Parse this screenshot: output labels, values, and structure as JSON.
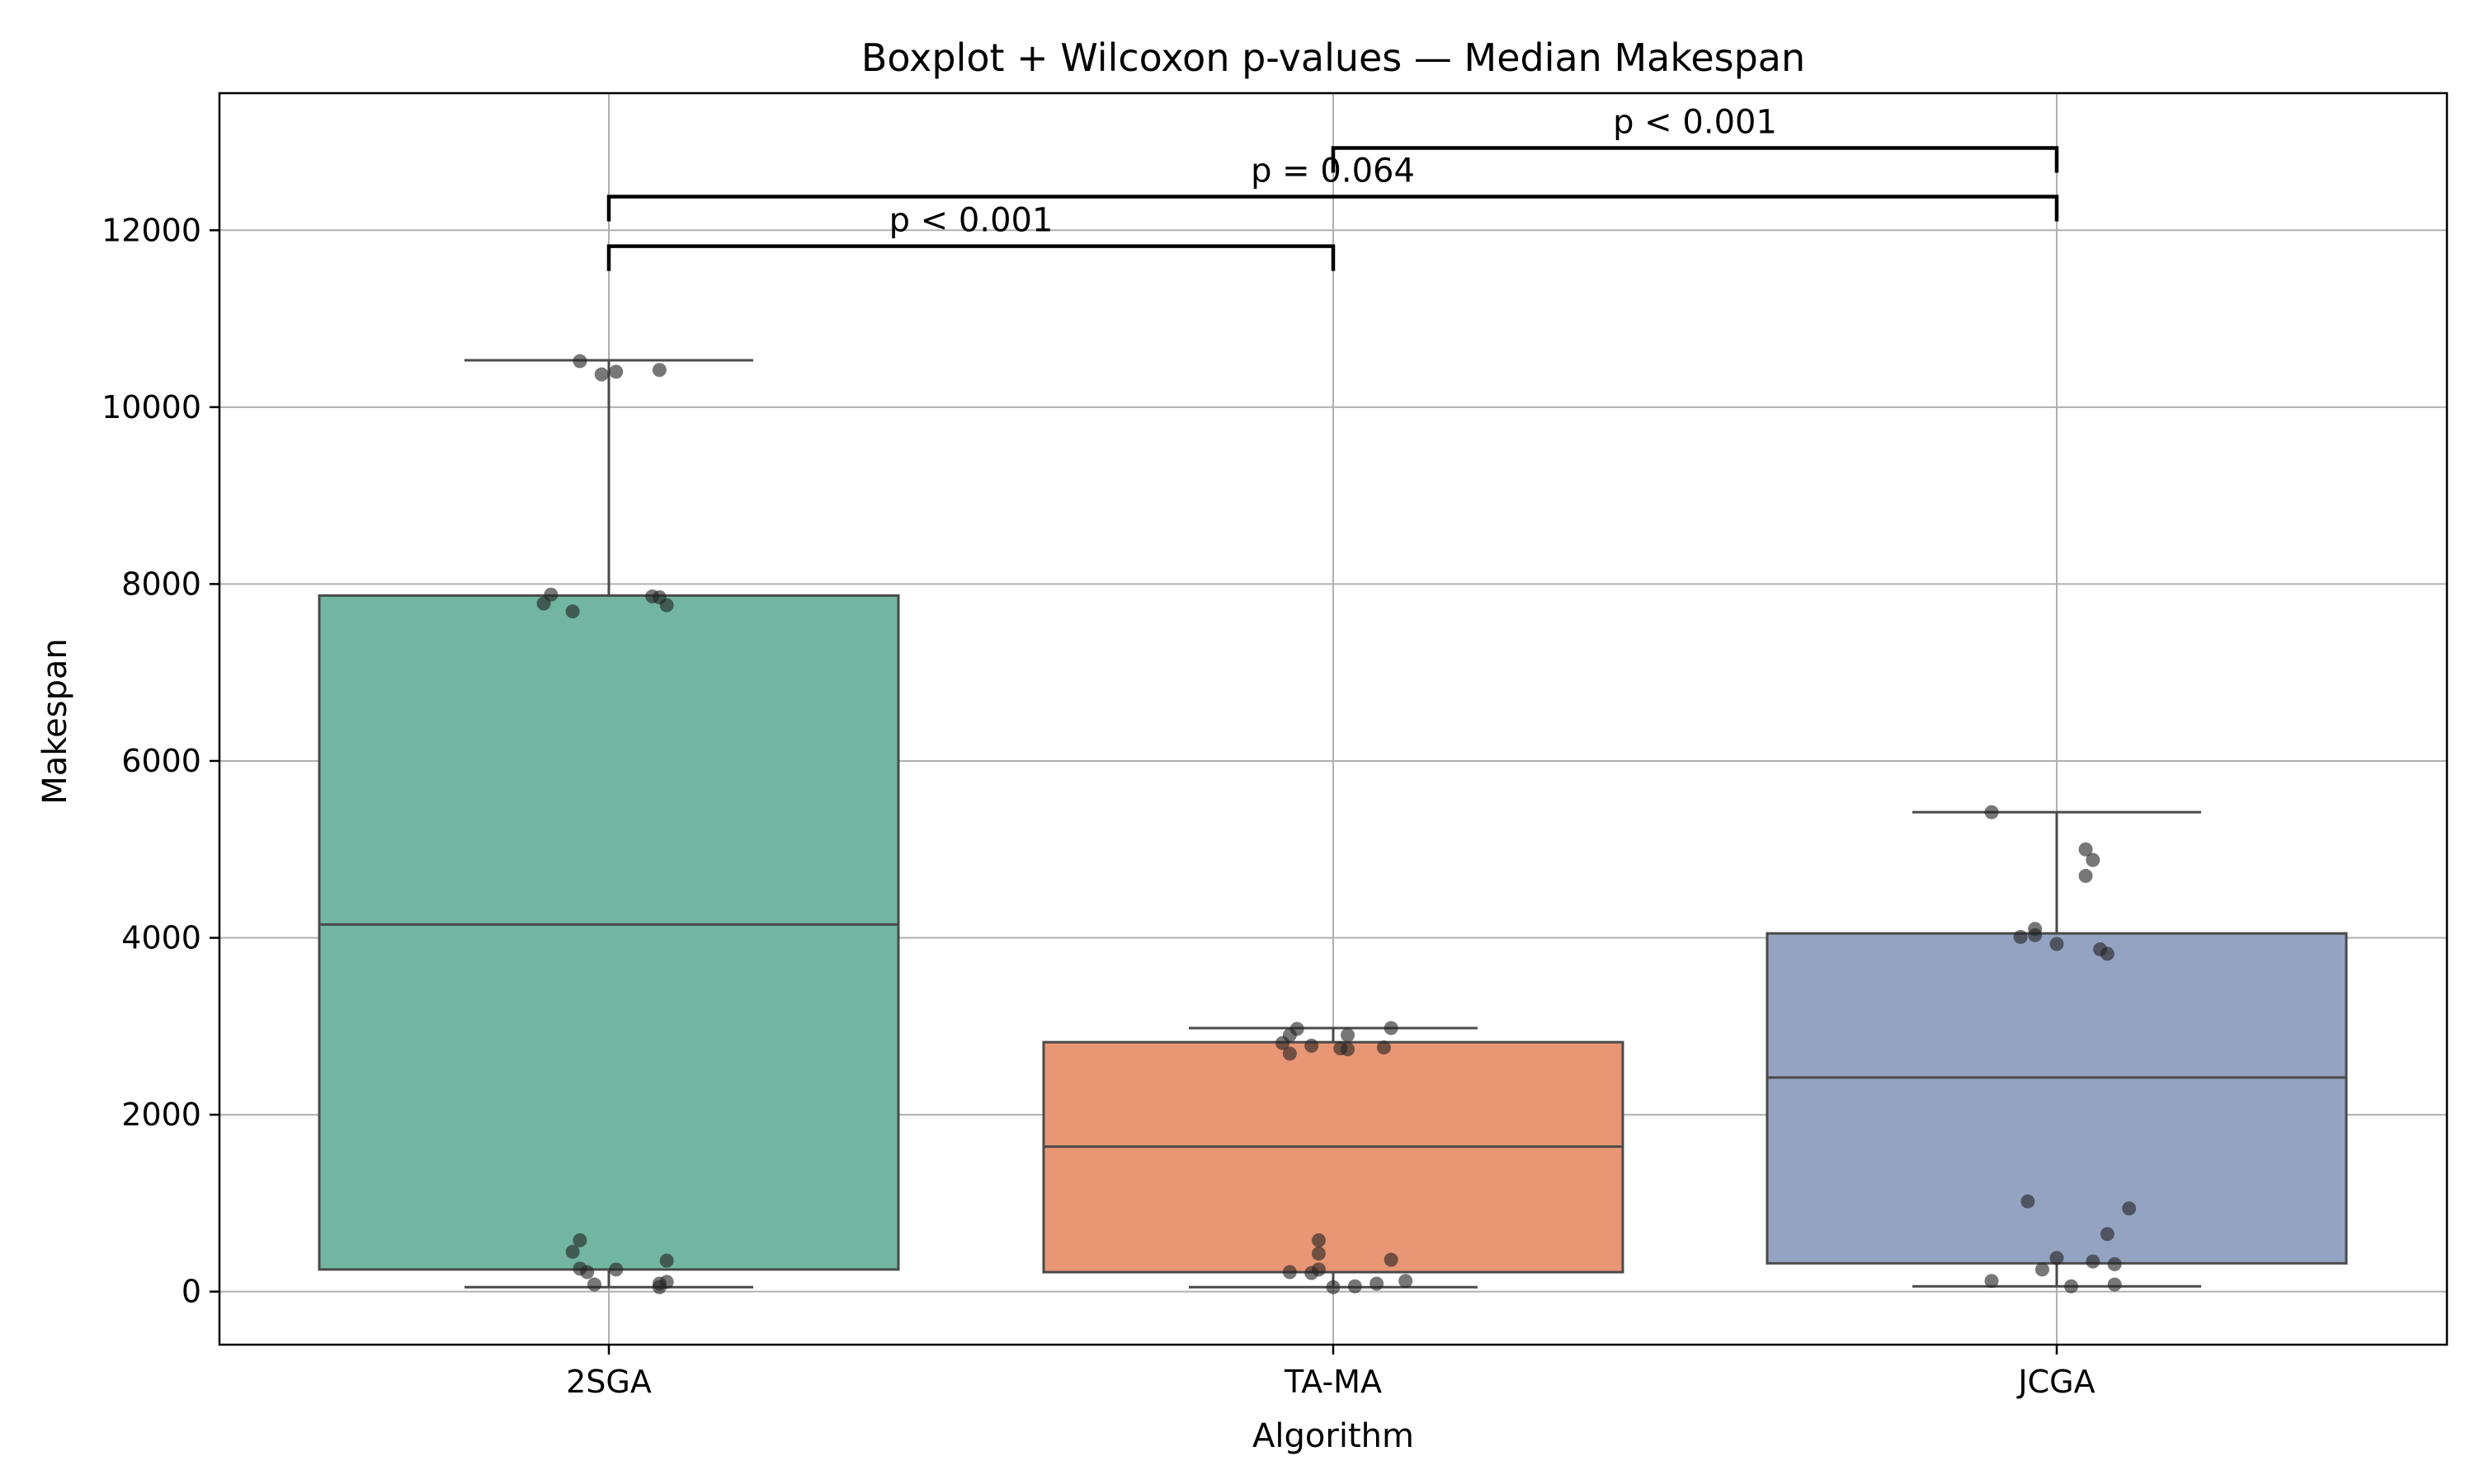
{
  "chart_data": {
    "type": "box",
    "title": "Boxplot + Wilcoxon p-values — Median Makespan",
    "xlabel": "Algorithm",
    "ylabel": "Makespan",
    "ylim": [
      -600,
      13550
    ],
    "yticks": [
      0,
      2000,
      4000,
      6000,
      8000,
      10000,
      12000
    ],
    "grid": true,
    "categories": [
      "2SGA",
      "TA-MA",
      "JCGA"
    ],
    "colors": [
      "#72b6a1",
      "#e99675",
      "#95a3c3"
    ],
    "boxes": [
      {
        "name": "2SGA",
        "whisker_low": 50,
        "q1": 250,
        "median": 4150,
        "q3": 7870,
        "whisker_high": 10530
      },
      {
        "name": "TA-MA",
        "whisker_low": 50,
        "q1": 220,
        "median": 1640,
        "q3": 2820,
        "whisker_high": 2980
      },
      {
        "name": "JCGA",
        "whisker_low": 60,
        "q1": 320,
        "median": 2420,
        "q3": 4050,
        "whisker_high": 5420
      }
    ],
    "points": [
      [
        10520,
        10370,
        10400,
        10420,
        7880,
        7780,
        7690,
        7860,
        7850,
        7760,
        580,
        450,
        260,
        220,
        250,
        350,
        80,
        50,
        110,
        90
      ],
      [
        2980,
        2970,
        2900,
        2810,
        2780,
        2750,
        2740,
        2690,
        2900,
        2760,
        580,
        430,
        360,
        250,
        220,
        210,
        120,
        90,
        60,
        50
      ],
      [
        5420,
        5000,
        4880,
        4700,
        4100,
        4030,
        4010,
        3930,
        3870,
        3820,
        1020,
        940,
        650,
        380,
        340,
        310,
        250,
        120,
        80,
        60
      ]
    ],
    "jitter": [
      [
        -0.04,
        -0.01,
        0.01,
        0.07,
        -0.08,
        -0.09,
        -0.05,
        0.06,
        0.07,
        0.08,
        -0.04,
        -0.05,
        -0.04,
        -0.03,
        0.01,
        0.08,
        -0.02,
        0.07,
        0.08,
        0.07
      ],
      [
        0.08,
        -0.05,
        0.02,
        -0.07,
        -0.03,
        0.01,
        0.02,
        -0.06,
        -0.06,
        0.07,
        -0.02,
        -0.02,
        0.08,
        -0.02,
        -0.06,
        -0.03,
        0.1,
        0.06,
        0.03,
        0.0
      ],
      [
        -0.09,
        0.04,
        0.05,
        0.04,
        -0.03,
        -0.03,
        -0.05,
        0.0,
        0.06,
        0.07,
        -0.04,
        0.1,
        0.07,
        0.0,
        0.05,
        0.08,
        -0.02,
        -0.09,
        0.08,
        0.02
      ]
    ],
    "comparisons": [
      {
        "from": 0,
        "to": 1,
        "label": "p < 0.001",
        "y": 11820
      },
      {
        "from": 0,
        "to": 2,
        "label": "p = 0.064",
        "y": 12380
      },
      {
        "from": 1,
        "to": 2,
        "label": "p < 0.001",
        "y": 12930
      }
    ]
  }
}
